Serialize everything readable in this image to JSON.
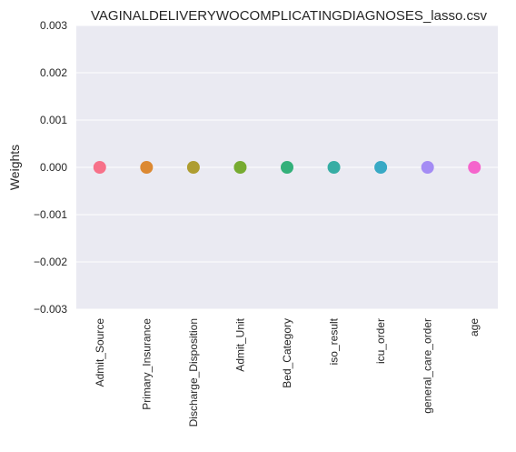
{
  "chart_data": {
    "type": "scatter",
    "title": "VAGINALDELIVERYWOCOMPLICATINGDIAGNOSES_lasso.csv",
    "xlabel": "",
    "ylabel": "Weights",
    "ylim": [
      -0.003,
      0.003
    ],
    "yticks": [
      0.003,
      0.002,
      0.001,
      0.0,
      -0.001,
      -0.002,
      -0.003
    ],
    "ytick_labels": [
      "0.003",
      "0.002",
      "0.001",
      "0.000",
      "−0.001",
      "−0.002",
      "−0.003"
    ],
    "categories": [
      "Admit_Source",
      "Primary_Insurance",
      "Discharge_Disposition",
      "Admit_Unit",
      "Bed_Category",
      "iso_result",
      "icu_order",
      "general_care_order",
      "age"
    ],
    "values": [
      0,
      0,
      0,
      0,
      0,
      0,
      0,
      0,
      0
    ],
    "colors": [
      "#f77189",
      "#dc8932",
      "#ae9d31",
      "#77ab31",
      "#33b07a",
      "#36ada4",
      "#38a9c5",
      "#a48cf4",
      "#f565cc"
    ],
    "background": "#eaeaf2",
    "gridlines": true,
    "x_tick_rotation": "vertical"
  }
}
